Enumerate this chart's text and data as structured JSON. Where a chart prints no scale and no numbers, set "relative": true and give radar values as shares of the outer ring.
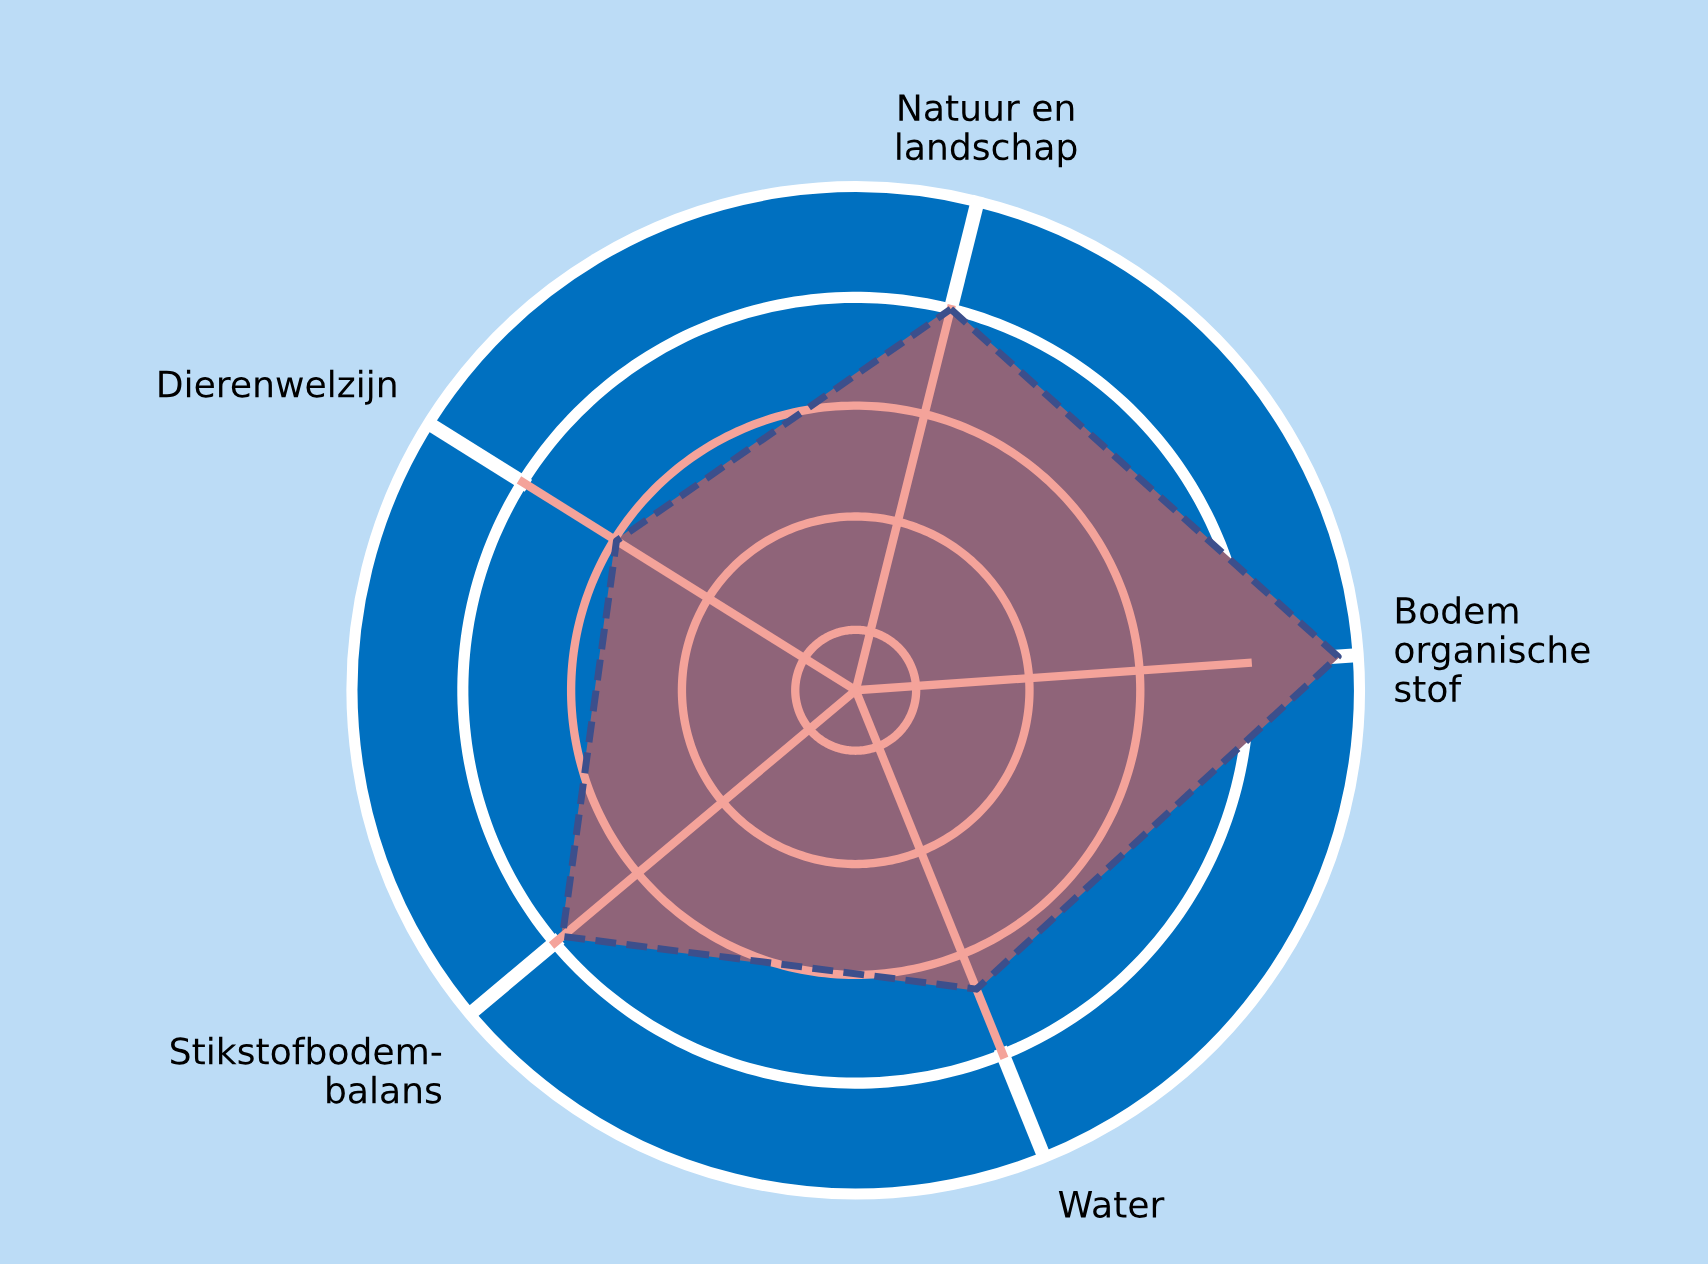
{
  "chart_data": {
    "type": "radar",
    "relative": true,
    "grid": true,
    "line_style": "dashed",
    "marker": "none",
    "categories": [
      "Natuur en\nlandschap",
      "Bodem\norganische\nstof",
      "Water",
      "Stikstofbodem-\nbalans",
      "Dierenwelzijn"
    ],
    "series": [
      {
        "color": "#8f6479",
        "values": [
          0.78,
          0.96,
          0.64,
          0.76,
          0.56
        ]
      }
    ]
  }
}
